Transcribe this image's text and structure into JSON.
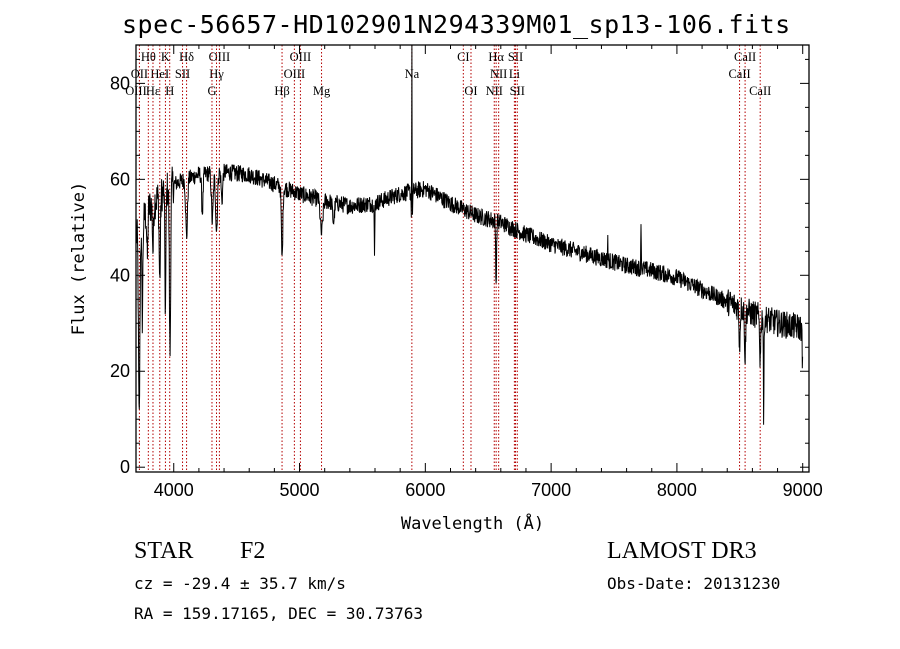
{
  "title": "spec-56657-HD102901N294339M01_sp13-106.fits",
  "object_class": "STAR",
  "subclass": "F2",
  "survey": "LAMOST DR3",
  "redshift_text": "cz = -29.4 ± 35.7 km/s",
  "obs_date_text": "Obs-Date: 20131230",
  "coords_text": "RA = 159.17165, DEC =  30.73763",
  "colors": {
    "line_marker": "#b30000",
    "spectrum": "#000000",
    "axes": "#000000"
  },
  "chart_data": {
    "type": "line",
    "xlabel": "Wavelength (Å)",
    "ylabel": "Flux (relative)",
    "xlim": [
      3700,
      9050
    ],
    "ylim": [
      -1,
      88
    ],
    "xticks": [
      4000,
      5000,
      6000,
      7000,
      8000,
      9000
    ],
    "yticks": [
      0,
      20,
      40,
      60,
      80
    ],
    "continuum": [
      [
        3700,
        48
      ],
      [
        3800,
        54
      ],
      [
        3900,
        57
      ],
      [
        4000,
        59
      ],
      [
        4100,
        60
      ],
      [
        4200,
        61
      ],
      [
        4400,
        61.5
      ],
      [
        4600,
        61
      ],
      [
        4800,
        59
      ],
      [
        5000,
        57
      ],
      [
        5200,
        55.5
      ],
      [
        5400,
        54.5
      ],
      [
        5600,
        55
      ],
      [
        5800,
        57
      ],
      [
        6000,
        58
      ],
      [
        6200,
        55
      ],
      [
        6400,
        52.5
      ],
      [
        6600,
        51
      ],
      [
        6800,
        48.5
      ],
      [
        7000,
        46.5
      ],
      [
        7200,
        45
      ],
      [
        7400,
        43.5
      ],
      [
        7600,
        42
      ],
      [
        7800,
        41
      ],
      [
        8000,
        39.5
      ],
      [
        8200,
        37
      ],
      [
        8400,
        34.5
      ],
      [
        8600,
        32
      ],
      [
        8800,
        30
      ],
      [
        9000,
        29
      ]
    ],
    "absorption_features": [
      [
        3725,
        40,
        8
      ],
      [
        3750,
        20,
        6
      ],
      [
        3790,
        10,
        6
      ],
      [
        3835,
        10,
        6
      ],
      [
        3889,
        18,
        7
      ],
      [
        3934,
        25,
        6
      ],
      [
        3970,
        35,
        7
      ],
      [
        4102,
        12,
        10
      ],
      [
        4227,
        8,
        8
      ],
      [
        4307,
        10,
        10
      ],
      [
        4340,
        12,
        10
      ],
      [
        4383,
        6,
        8
      ],
      [
        4861,
        15,
        8
      ],
      [
        5175,
        7,
        14
      ],
      [
        5270,
        4,
        10
      ],
      [
        5596,
        12,
        3
      ],
      [
        5893,
        6,
        7
      ],
      [
        6563,
        13,
        5
      ],
      [
        8498,
        8,
        6
      ],
      [
        8542,
        10,
        6
      ],
      [
        8662,
        9,
        6
      ],
      [
        8690,
        24,
        3
      ],
      [
        9000,
        8,
        6
      ]
    ],
    "emission_features": [
      [
        5893,
        88,
        1.5
      ],
      [
        7715,
        11,
        2.5
      ],
      [
        7450,
        6,
        2
      ]
    ],
    "noise_amplitude": 1.8,
    "line_markers": [
      {
        "label": "Hθ",
        "wave": 3798,
        "row": 0
      },
      {
        "label": "K",
        "wave": 3934,
        "row": 0
      },
      {
        "label": "Hδ",
        "wave": 4102,
        "row": 0
      },
      {
        "label": "OIII",
        "wave": 4363,
        "row": 0
      },
      {
        "label": "OIII",
        "wave": 5007,
        "row": 0
      },
      {
        "label": "Na",
        "wave": 5893,
        "row": 1
      },
      {
        "label": "CI",
        "wave": 6302,
        "row": 0
      },
      {
        "label": "Hα",
        "wave": 6563,
        "row": 0
      },
      {
        "label": "SII",
        "wave": 6717,
        "row": 0
      },
      {
        "label": "CaII",
        "wave": 8542,
        "row": 0
      },
      {
        "label": "OII",
        "wave": 3727,
        "row": 1
      },
      {
        "label": "HeI",
        "wave": 3889,
        "row": 1
      },
      {
        "label": "SII",
        "wave": 4070,
        "row": 1
      },
      {
        "label": "Hγ",
        "wave": 4340,
        "row": 1
      },
      {
        "label": "OIII",
        "wave": 4959,
        "row": 1
      },
      {
        "label": "NII",
        "wave": 6583,
        "row": 1
      },
      {
        "label": "Li",
        "wave": 6708,
        "row": 1
      },
      {
        "label": "CaII",
        "wave": 8498,
        "row": 1
      },
      {
        "label": "OIII",
        "wave": 3700,
        "row": 2
      },
      {
        "label": "Hε",
        "wave": 3835,
        "row": 2
      },
      {
        "label": "H",
        "wave": 3968,
        "row": 2
      },
      {
        "label": "G",
        "wave": 4304,
        "row": 2
      },
      {
        "label": "Hβ",
        "wave": 4861,
        "row": 2
      },
      {
        "label": "Mg",
        "wave": 5175,
        "row": 2
      },
      {
        "label": "OI",
        "wave": 6363,
        "row": 2
      },
      {
        "label": "NII",
        "wave": 6548,
        "row": 2
      },
      {
        "label": "SII",
        "wave": 6731,
        "row": 2
      },
      {
        "label": "CaII",
        "wave": 8662,
        "row": 2
      }
    ]
  }
}
